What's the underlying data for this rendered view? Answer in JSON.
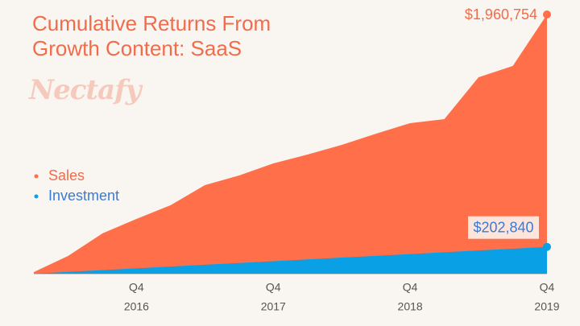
{
  "chart_data": {
    "type": "area",
    "title": "Cumulative Returns From Growth Content: SaaS",
    "watermark": "Nectafy",
    "categories": [
      null,
      null,
      null,
      {
        "quarter": "Q4",
        "year": "2016"
      },
      null,
      null,
      null,
      {
        "quarter": "Q4",
        "year": "2017"
      },
      null,
      null,
      null,
      {
        "quarter": "Q4",
        "year": "2018"
      },
      null,
      null,
      null,
      {
        "quarter": "Q4",
        "year": "2019"
      }
    ],
    "series": [
      {
        "name": "Sales",
        "color": "#ff6f4a",
        "values": [
          12000,
          134000,
          304000,
          414000,
          518000,
          670000,
          743000,
          834000,
          901000,
          974000,
          1059000,
          1139000,
          1169000,
          1486000,
          1571000,
          1960754
        ],
        "value_labels": [
          null,
          null,
          null,
          null,
          null,
          null,
          null,
          null,
          null,
          null,
          null,
          null,
          null,
          null,
          null,
          "$1,960,754"
        ]
      },
      {
        "name": "Investment",
        "color": "#0aa0e6",
        "values": [
          0,
          13500,
          27000,
          40500,
          54000,
          67500,
          81000,
          94500,
          108000,
          121500,
          135000,
          148500,
          162000,
          175500,
          189000,
          202840
        ],
        "value_labels": [
          null,
          null,
          null,
          null,
          null,
          null,
          null,
          null,
          null,
          null,
          null,
          null,
          null,
          null,
          null,
          "$202,840"
        ]
      }
    ]
  }
}
